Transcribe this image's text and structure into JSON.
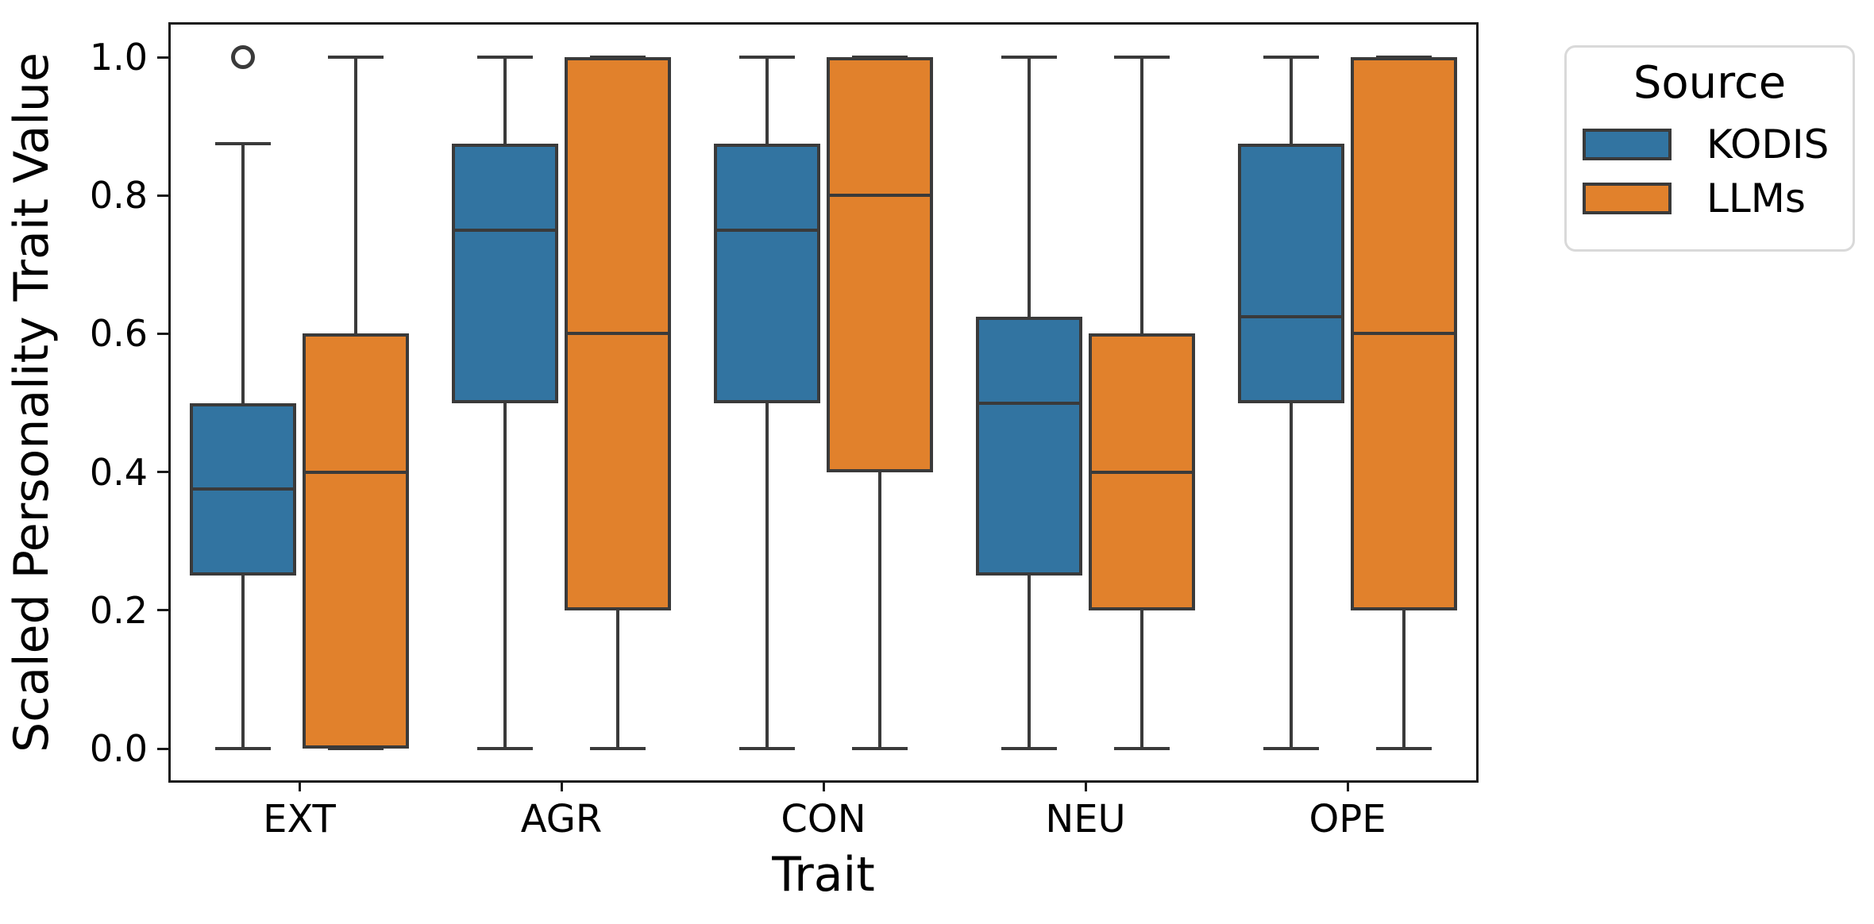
{
  "chart_data": {
    "type": "boxplot",
    "xlabel": "Trait",
    "ylabel": "Scaled Personality Trait Value",
    "categories": [
      "EXT",
      "AGR",
      "CON",
      "NEU",
      "OPE"
    ],
    "y_ticks": {
      "values": [
        0.0,
        0.2,
        0.4,
        0.6,
        0.8,
        1.0
      ],
      "labels": [
        "0.0",
        "0.2",
        "0.4",
        "0.6",
        "0.8",
        "1.0"
      ]
    },
    "ylim": [
      -0.05,
      1.05
    ],
    "grid": false,
    "legend": {
      "title": "Source",
      "position": "outside-upper-right",
      "entries": [
        {
          "label": "KODIS",
          "color": "#3274A1"
        },
        {
          "label": "LLMs",
          "color": "#E1812C"
        }
      ]
    },
    "style": {
      "line_color": "#3A3A3A",
      "spine_color": "#1a1a1a",
      "text_color": "#000000",
      "background": "#FFFFFF"
    },
    "series": [
      {
        "name": "KODIS",
        "color": "#3274A1",
        "boxes": [
          {
            "category": "EXT",
            "whislo": 0.0,
            "q1": 0.25,
            "med": 0.375,
            "q3": 0.5,
            "whishi": 0.875,
            "fliers": [
              1.0
            ]
          },
          {
            "category": "AGR",
            "whislo": 0.0,
            "q1": 0.5,
            "med": 0.75,
            "q3": 0.875,
            "whishi": 1.0,
            "fliers": []
          },
          {
            "category": "CON",
            "whislo": 0.0,
            "q1": 0.5,
            "med": 0.75,
            "q3": 0.875,
            "whishi": 1.0,
            "fliers": []
          },
          {
            "category": "NEU",
            "whislo": 0.0,
            "q1": 0.25,
            "med": 0.5,
            "q3": 0.625,
            "whishi": 1.0,
            "fliers": []
          },
          {
            "category": "OPE",
            "whislo": 0.0,
            "q1": 0.5,
            "med": 0.625,
            "q3": 0.875,
            "whishi": 1.0,
            "fliers": []
          }
        ]
      },
      {
        "name": "LLMs",
        "color": "#E1812C",
        "boxes": [
          {
            "category": "EXT",
            "whislo": 0.0,
            "q1": 0.0,
            "med": 0.4,
            "q3": 0.6,
            "whishi": 1.0,
            "fliers": []
          },
          {
            "category": "AGR",
            "whislo": 0.0,
            "q1": 0.2,
            "med": 0.6,
            "q3": 1.0,
            "whishi": 1.0,
            "fliers": []
          },
          {
            "category": "CON",
            "whislo": 0.0,
            "q1": 0.4,
            "med": 0.8,
            "q3": 1.0,
            "whishi": 1.0,
            "fliers": []
          },
          {
            "category": "NEU",
            "whislo": 0.0,
            "q1": 0.2,
            "med": 0.4,
            "q3": 0.6,
            "whishi": 1.0,
            "fliers": []
          },
          {
            "category": "OPE",
            "whislo": 0.0,
            "q1": 0.2,
            "med": 0.6,
            "q3": 1.0,
            "whishi": 1.0,
            "fliers": []
          }
        ]
      }
    ]
  }
}
